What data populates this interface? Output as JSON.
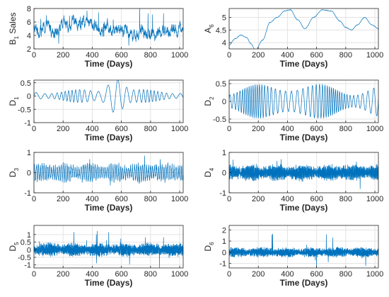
{
  "figure": {
    "line_color": "#0072bd",
    "grid_color": "#e3e3e3",
    "axis_color": "#262626"
  },
  "chart_data": [
    {
      "type": "line",
      "signal": "random-walk",
      "ylabel": {
        "main": "B",
        "sub": "1",
        "tail": " Sales"
      },
      "xlabel": "Time (Days)",
      "xlim": [
        0,
        1024
      ],
      "ylim": [
        2,
        8
      ],
      "xticks": [
        "0",
        "200",
        "400",
        "600",
        "800",
        "1000"
      ],
      "yticks": [
        "2",
        "4",
        "6",
        "8"
      ],
      "grid": true,
      "series": [
        {
          "level": 4.8,
          "amplitude": 1.1,
          "spikes": 2.5
        }
      ]
    },
    {
      "type": "line",
      "signal": "smooth",
      "ylabel": {
        "main": "A",
        "sub": "6",
        "tail": ""
      },
      "xlabel": "Time (Days)",
      "xlim": [
        0,
        1024
      ],
      "ylim": [
        3.75,
        5.35
      ],
      "xticks": [
        "0",
        "200",
        "400",
        "600",
        "800",
        "1000"
      ],
      "yticks": [
        "4",
        "4.5",
        "5"
      ],
      "grid": true,
      "series": [
        {
          "x": [
            0,
            40,
            80,
            120,
            150,
            180,
            230,
            280,
            330,
            380,
            420,
            470,
            520,
            580,
            640,
            700,
            760,
            800,
            840,
            880,
            930,
            980,
            1024
          ],
          "y": [
            3.9,
            4.15,
            4.3,
            4.2,
            3.95,
            3.7,
            4.1,
            4.8,
            5.0,
            5.25,
            5.3,
            4.9,
            4.55,
            5.0,
            5.3,
            5.25,
            4.85,
            4.6,
            4.5,
            4.7,
            5.0,
            4.7,
            4.55
          ]
        }
      ]
    },
    {
      "type": "line",
      "signal": "oscillation",
      "ylabel": {
        "main": "D",
        "sub": "1",
        "tail": ""
      },
      "xlabel": "Time (Days)",
      "xlim": [
        0,
        1024
      ],
      "ylim": [
        -1,
        0.6
      ],
      "xticks": [
        "0",
        "200",
        "400",
        "600",
        "800",
        "1000"
      ],
      "yticks": [
        "-1",
        "-0.5",
        "0",
        "0.5"
      ],
      "grid": true,
      "series": [
        {
          "amplitude": 0.22,
          "period": 58,
          "burst_center": 560,
          "burst_width": 70,
          "burst_amp": 0.55
        }
      ]
    },
    {
      "type": "line",
      "signal": "oscillation",
      "ylabel": {
        "main": "D",
        "sub": "2",
        "tail": ""
      },
      "xlabel": "Time (Days)",
      "xlim": [
        0,
        1024
      ],
      "ylim": [
        -0.6,
        0.6
      ],
      "xticks": [
        "0",
        "200",
        "400",
        "600",
        "800",
        "1000"
      ],
      "yticks": [
        "-0.5",
        "0",
        "0.5"
      ],
      "grid": true,
      "series": [
        {
          "amplitude": 0.42,
          "period": 34,
          "burst_center": 420,
          "burst_width": 150,
          "burst_amp": 0.12
        }
      ]
    },
    {
      "type": "line",
      "signal": "noise",
      "ylabel": {
        "main": "D",
        "sub": "3",
        "tail": ""
      },
      "xlabel": "Time (Days)",
      "xlim": [
        0,
        1024
      ],
      "ylim": [
        -1,
        1
      ],
      "xticks": [
        "0",
        "200",
        "400",
        "600",
        "800",
        "1000"
      ],
      "yticks": [
        "-1",
        "0",
        "1"
      ],
      "grid": true,
      "series": [
        {
          "amplitude": 0.32,
          "period": 14,
          "spikes": 0.75
        }
      ]
    },
    {
      "type": "line",
      "signal": "noise",
      "ylabel": {
        "main": "D",
        "sub": "4",
        "tail": ""
      },
      "xlabel": "Time (Days)",
      "xlim": [
        0,
        1024
      ],
      "ylim": [
        -1,
        1
      ],
      "xticks": [
        "0",
        "200",
        "400",
        "600",
        "800",
        "1000"
      ],
      "yticks": [
        "-1",
        "0",
        "1"
      ],
      "grid": true,
      "series": [
        {
          "amplitude": 0.28,
          "period": 5,
          "spikes": 0.8
        }
      ]
    },
    {
      "type": "line",
      "signal": "noise",
      "ylabel": {
        "main": "D",
        "sub": "5",
        "tail": ""
      },
      "xlabel": "Time (Days)",
      "xlim": [
        0,
        1024
      ],
      "ylim": [
        -1.2,
        1.6
      ],
      "xticks": [
        "0",
        "200",
        "400",
        "600",
        "800",
        "1000"
      ],
      "yticks": [
        "-1",
        "-0.5",
        "0",
        "0.5",
        "1"
      ],
      "grid": true,
      "series": [
        {
          "amplitude": 0.3,
          "period": 3,
          "spikes": 1.5
        }
      ]
    },
    {
      "type": "line",
      "signal": "noise",
      "ylabel": {
        "main": "D",
        "sub": "6",
        "tail": ""
      },
      "xlabel": "Time (Days)",
      "xlim": [
        0,
        1024
      ],
      "ylim": [
        -1.4,
        2.4
      ],
      "xticks": [
        "0",
        "200",
        "400",
        "600",
        "800",
        "1000"
      ],
      "yticks": [
        "-1",
        "0",
        "1",
        "2"
      ],
      "grid": true,
      "series": [
        {
          "amplitude": 0.3,
          "period": 3,
          "spikes": 2.2
        }
      ]
    }
  ]
}
